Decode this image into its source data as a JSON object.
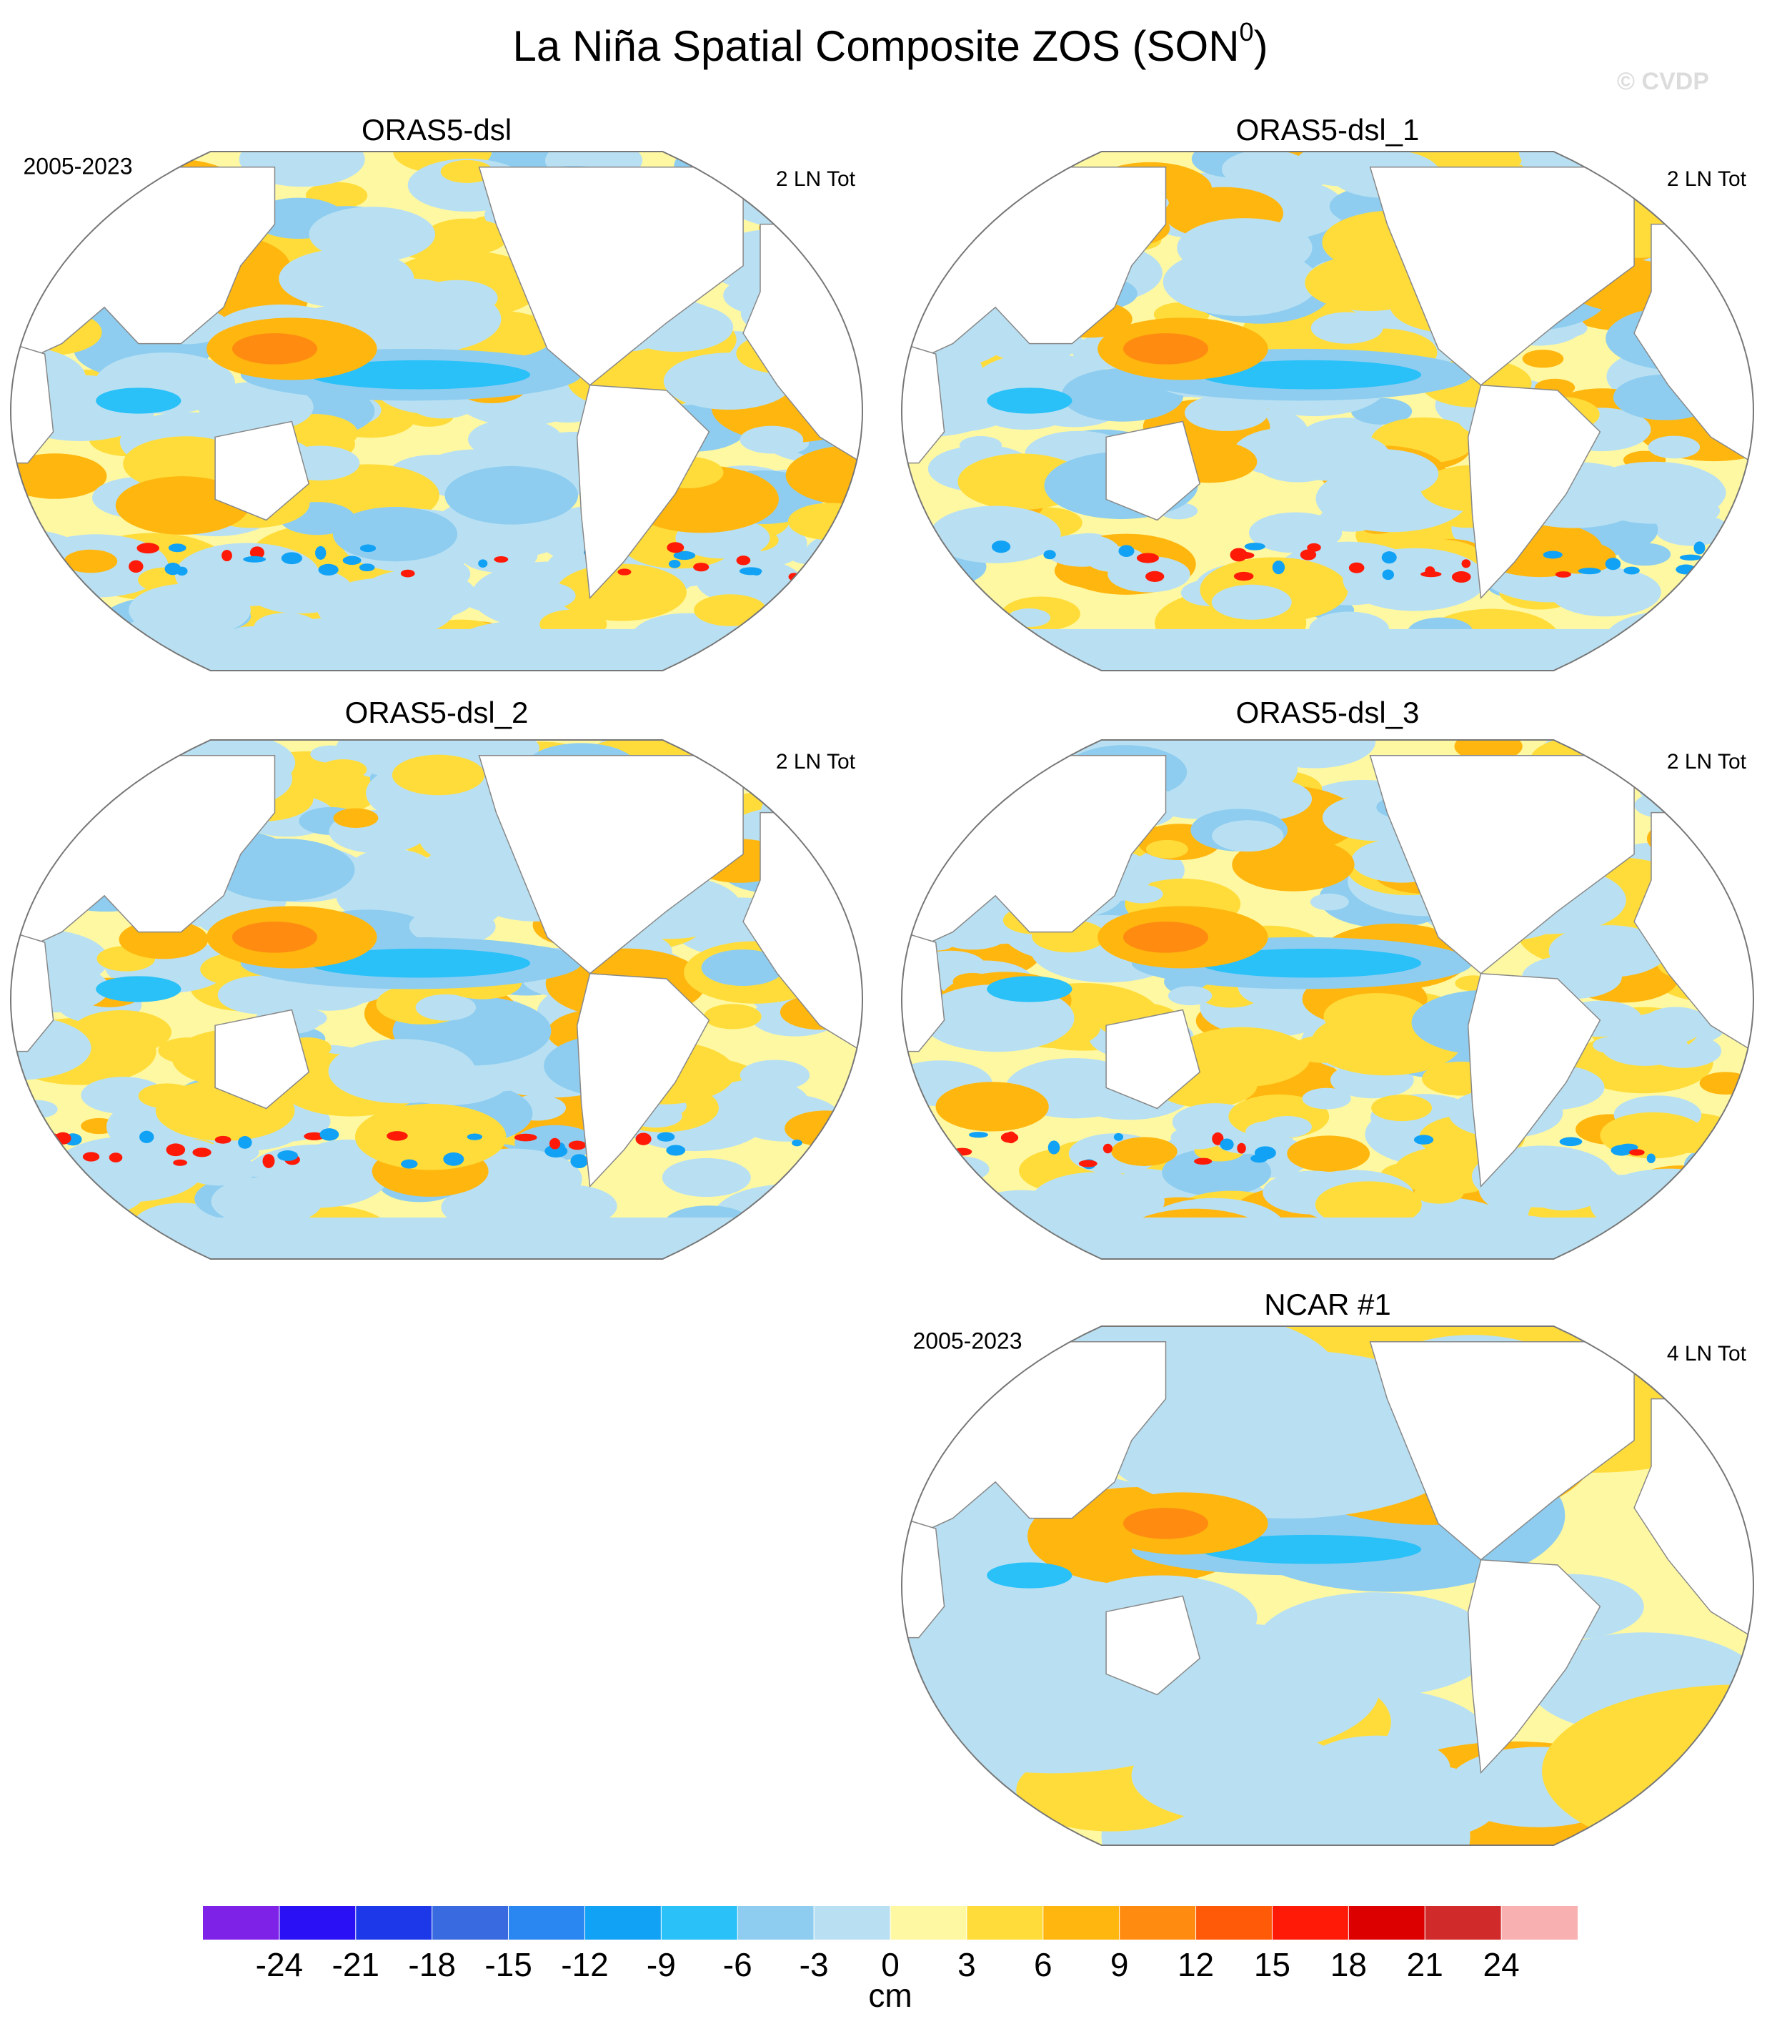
{
  "header": {
    "title": "La Niña Spatial Composite ZOS (SON",
    "title_superscript": "0",
    "title_close": ")",
    "credit": "© CVDP"
  },
  "panels": [
    {
      "title": "ORAS5-dsl",
      "period": "2005-2023",
      "count": "2 LN Tot"
    },
    {
      "title": "ORAS5-dsl_1",
      "count": "2 LN Tot"
    },
    {
      "title": "ORAS5-dsl_2",
      "count": "2 LN Tot"
    },
    {
      "title": "ORAS5-dsl_3",
      "count": "2 LN Tot"
    },
    {
      "title": "NCAR #1",
      "period": "2005-2023",
      "count": "4 LN Tot"
    }
  ],
  "colorbar": {
    "label": "cm",
    "ticks": [
      -24,
      -21,
      -18,
      -15,
      -12,
      -9,
      -6,
      -3,
      0,
      3,
      6,
      9,
      12,
      15,
      18,
      21,
      24
    ],
    "colors": [
      "#7f22e8",
      "#2a10f5",
      "#1d38e8",
      "#3a6ae0",
      "#2a86f0",
      "#12a2f5",
      "#2ac0f8",
      "#8ecdf0",
      "#b9e0f2",
      "#fff8a2",
      "#ffdc3a",
      "#ffb60f",
      "#ff8c10",
      "#ff5a08",
      "#ff1a08",
      "#dc0000",
      "#d02a2a",
      "#f8b0b0"
    ]
  }
}
